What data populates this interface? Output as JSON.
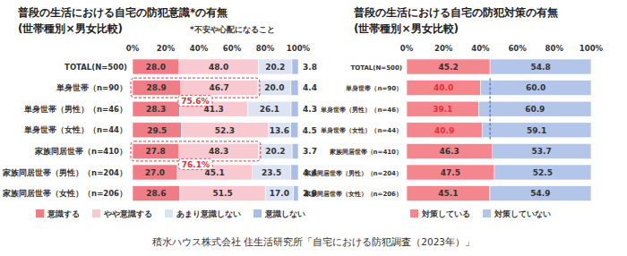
{
  "chart_data": [
    {
      "type": "bar",
      "orientation": "horizontal",
      "stacked": true,
      "data_labels": true,
      "grid": false,
      "legend": "bottom",
      "title": "普段の生活における自宅の防犯意識*の有無",
      "subtitle": "(世帯種別×男女比較)",
      "note": "*不安や心配になること",
      "categories": [
        "TOTAL(N=500)",
        "単身世帯（n=90）",
        "単身世帯（男性）（n=46）",
        "単身世帯（女性）（n=44）",
        "家族同居世帯（n=410）",
        "家族同居世帯（男性）（n=204）",
        "家族同居世帯（女性）（n=206）"
      ],
      "series": [
        {
          "name": "意識する",
          "color": "#f07c86",
          "values": [
            28.0,
            28.9,
            28.3,
            29.5,
            27.8,
            27.0,
            28.6
          ],
          "value_labels": [
            "28.0",
            "28.9",
            "28.3",
            "29.5",
            "27.8",
            "27.0",
            "28.6"
          ]
        },
        {
          "name": "やや意識する",
          "color": "#f8c9d0",
          "values": [
            48.0,
            46.7,
            41.3,
            52.3,
            48.3,
            45.1,
            51.5
          ],
          "value_labels": [
            "48.0",
            "46.7",
            "41.3",
            "52.3",
            "48.3",
            "45.1",
            "51.5"
          ]
        },
        {
          "name": "あまり意識しない",
          "color": "#dce4f4",
          "values": [
            20.2,
            20.0,
            26.1,
            13.6,
            20.2,
            23.5,
            17.0
          ],
          "value_labels": [
            "20.2",
            "20.0",
            "26.1",
            "13.6",
            "20.2",
            "23.5",
            "17.0"
          ]
        },
        {
          "name": "意識しない",
          "color": "#a9bde6",
          "values": [
            3.8,
            4.4,
            4.3,
            4.5,
            3.7,
            4.4,
            2.9
          ],
          "value_labels": [
            "3.8",
            "4.4",
            "4.3",
            "4.5",
            "3.7",
            "4.4",
            "2.9"
          ]
        }
      ],
      "xlim": [
        0,
        100
      ],
      "xticks": [
        {
          "value": 0,
          "label": "0%"
        },
        {
          "value": 20,
          "label": "20%"
        },
        {
          "value": 40,
          "label": "40%"
        },
        {
          "value": 60,
          "label": "60%"
        },
        {
          "value": 80,
          "label": "80%"
        },
        {
          "value": 100,
          "label": "100%"
        }
      ],
      "annotations": [
        {
          "label": "75.6%",
          "value": 75.6,
          "category": "単身世帯（n=90）"
        },
        {
          "label": "76.1%",
          "value": 76.1,
          "category": "家族同居世帯（n=410）"
        }
      ]
    },
    {
      "type": "bar",
      "orientation": "horizontal",
      "stacked": true,
      "data_labels": true,
      "grid": false,
      "legend": "bottom",
      "title": "普段の生活における自宅の防犯対策の有無",
      "subtitle": "(世帯種別×男女比較)",
      "categories": [
        "TOTAL(N=500)",
        "単身世帯（n=90）",
        "単身世帯（男性）（n=46）",
        "単身世帯（女性）（n=44）",
        "家族同居世帯（n=410）",
        "家族同居世帯（男性）（n=204）",
        "家族同居世帯（女性）（n=206）"
      ],
      "series": [
        {
          "name": "対策している",
          "color": "#f4878e",
          "values": [
            45.2,
            40.0,
            39.1,
            40.9,
            46.3,
            47.5,
            45.1
          ],
          "value_labels": [
            "45.2",
            "40.0",
            "39.1",
            "40.9",
            "46.3",
            "47.5",
            "45.1"
          ]
        },
        {
          "name": "対策していない",
          "color": "#b3c6ea",
          "values": [
            54.8,
            60.0,
            60.9,
            59.1,
            53.7,
            52.5,
            54.9
          ],
          "value_labels": [
            "54.8",
            "60.0",
            "60.9",
            "59.1",
            "53.7",
            "52.5",
            "54.9"
          ]
        }
      ],
      "xlim": [
        0,
        100
      ],
      "xticks": [
        {
          "value": 0,
          "label": "0%"
        },
        {
          "value": 20,
          "label": "20%"
        },
        {
          "value": 40,
          "label": "40%"
        },
        {
          "value": 60,
          "label": "60%"
        },
        {
          "value": 80,
          "label": "80%"
        },
        {
          "value": 100,
          "label": "100%"
        }
      ]
    }
  ],
  "source": "積水ハウス株式会社 住生活研究所「自宅における防犯調査（2023年）」"
}
